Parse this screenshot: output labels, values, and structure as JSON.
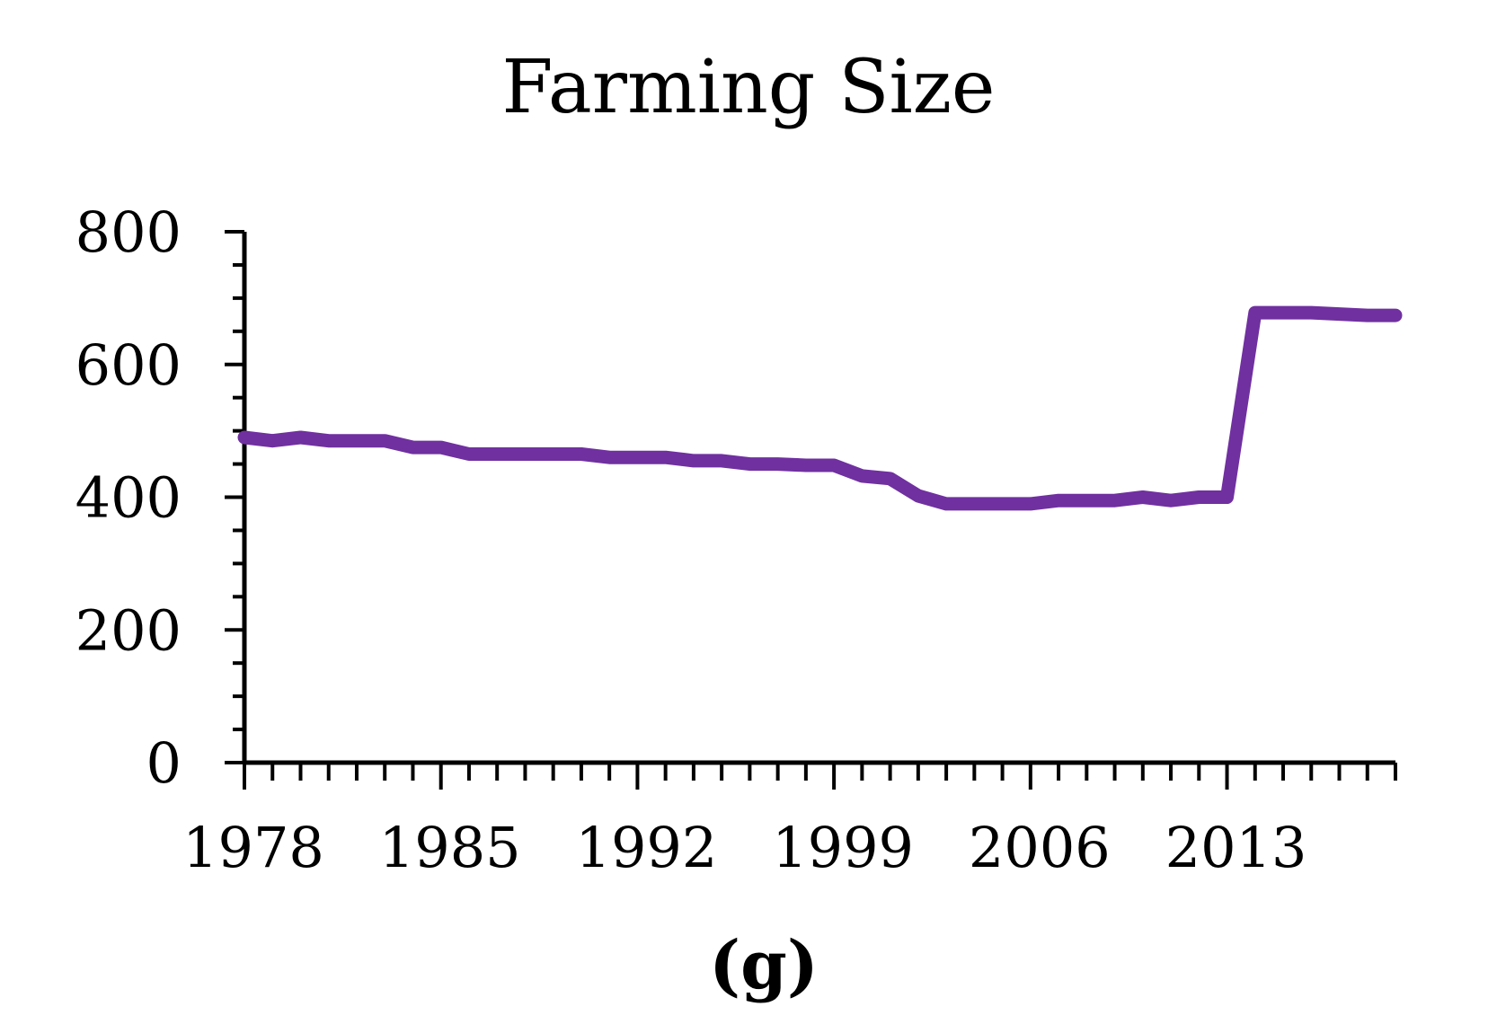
{
  "chart_data": {
    "type": "line",
    "title": "Farming Size",
    "caption": "(g)",
    "xlabel": "",
    "ylabel": "",
    "xlim": [
      1978,
      2019
    ],
    "ylim": [
      0,
      800
    ],
    "yticks": [
      0,
      200,
      400,
      600,
      800
    ],
    "xtick_labels": [
      1978,
      1985,
      1992,
      1999,
      2006,
      2013
    ],
    "series": [
      {
        "name": "Farming Size",
        "color": "#7030a0",
        "x": [
          1978,
          1979,
          1980,
          1981,
          1982,
          1983,
          1984,
          1985,
          1986,
          1987,
          1988,
          1989,
          1990,
          1991,
          1992,
          1993,
          1994,
          1995,
          1996,
          1997,
          1998,
          1999,
          2000,
          2001,
          2002,
          2003,
          2004,
          2005,
          2006,
          2007,
          2008,
          2009,
          2010,
          2011,
          2012,
          2013,
          2014,
          2015,
          2016,
          2017,
          2018,
          2019
        ],
        "values": [
          490,
          485,
          490,
          485,
          485,
          485,
          475,
          475,
          465,
          465,
          465,
          465,
          465,
          460,
          460,
          460,
          455,
          455,
          450,
          450,
          448,
          448,
          432,
          428,
          402,
          390,
          390,
          390,
          390,
          395,
          395,
          395,
          400,
          395,
          400,
          400,
          678,
          678,
          678,
          676,
          674,
          674
        ]
      }
    ]
  }
}
